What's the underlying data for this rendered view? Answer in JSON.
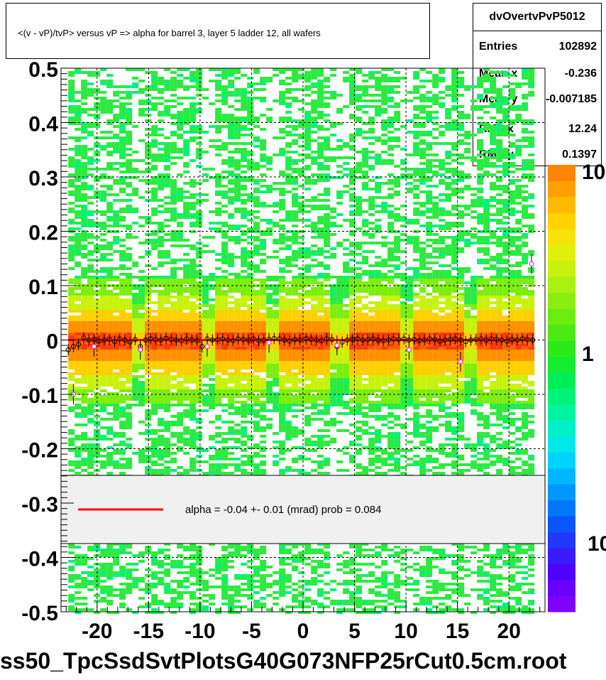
{
  "title": "<(v - vP)/tvP> versus   vP => alpha for barrel 3, layer 5 ladder 12, all wafers",
  "stats": {
    "name": "dvOvertvPvP5012",
    "rows": [
      {
        "key": "Entries",
        "value": "102892"
      },
      {
        "key": "Mean x",
        "value": "-0.236"
      },
      {
        "key": "Mean y",
        "value": "-0.007185"
      },
      {
        "key": "RMS x",
        "value": "12.24"
      },
      {
        "key": "RMS y",
        "value": "0.1397"
      }
    ]
  },
  "legend": {
    "line_color": "#ff0000",
    "text": "alpha =   -0.04 +-  0.01 (mrad) prob = 0.084"
  },
  "bottom_label": "ss50_TpcSsdSvtPlotsG40G073NFP25rCut0.5cm.root",
  "colors": {
    "points_profile": "#000000",
    "points_alt": "#ff00ff",
    "fit_line": "#ff0000",
    "grid": "#000000"
  },
  "chart_data": {
    "type": "heatmap",
    "title": "<(v - vP)/tvP> versus   vP => alpha for barrel 3, layer 5 ladder 12, all wafers",
    "xlim": [
      -23.5,
      23.5
    ],
    "ylim": [
      -0.5,
      0.5
    ],
    "x_ticks": [
      -20,
      -15,
      -10,
      -5,
      0,
      5,
      10,
      15,
      20
    ],
    "y_ticks": [
      -0.5,
      -0.4,
      -0.3,
      -0.2,
      -0.1,
      0,
      0.1,
      0.2,
      0.3,
      0.4,
      0.5
    ],
    "x_tick_labels": [
      "-20",
      "-15",
      "-10",
      "-5",
      "0",
      "5",
      "10",
      "15",
      "20"
    ],
    "y_tick_labels": [
      "-0.5",
      "-0.4",
      "-0.3",
      "-0.2",
      "-0.1",
      "0",
      "0.1",
      "0.2",
      "0.3",
      "0.4",
      "0.5"
    ],
    "grid": true,
    "colorbar": {
      "scale": "log",
      "tick_labels": [
        "10",
        "1",
        "10"
      ],
      "colors": [
        "#7f00ff",
        "#6a00ff",
        "#5000ff",
        "#3a1aff",
        "#2038ff",
        "#0a55ff",
        "#0077ff",
        "#0097ff",
        "#00b6ff",
        "#00d2ff",
        "#00e8e8",
        "#00f0c8",
        "#00f4a0",
        "#00f278",
        "#00ee55",
        "#14ec30",
        "#2cea1a",
        "#4cea14",
        "#6cec10",
        "#8cee10",
        "#aaf010",
        "#c8f20e",
        "#e2ee0c",
        "#f6e208",
        "#ffd200",
        "#ffba00",
        "#ffa000",
        "#ff8400"
      ]
    },
    "profile_points": {
      "x": [
        -22.8,
        -22.3,
        -21.8,
        -21.3,
        -20.8,
        -20.3,
        -19.8,
        -19.3,
        -18.8,
        -18.3,
        -17.8,
        -17.3,
        -16.8,
        -16.3,
        -15.8,
        -15.3,
        -14.8,
        -14.3,
        -13.8,
        -13.3,
        -12.8,
        -12.3,
        -11.8,
        -11.3,
        -10.8,
        -10.3,
        -9.8,
        -9.3,
        -8.8,
        -8.3,
        -7.8,
        -7.3,
        -6.8,
        -6.3,
        -5.8,
        -5.3,
        -4.8,
        -4.3,
        -3.8,
        -3.3,
        -2.8,
        -2.3,
        -1.8,
        -1.3,
        -0.8,
        -0.3,
        0.3,
        0.8,
        1.3,
        1.8,
        2.3,
        2.8,
        3.3,
        3.8,
        4.3,
        4.8,
        5.3,
        5.8,
        6.3,
        6.8,
        7.3,
        7.8,
        8.3,
        8.8,
        9.3,
        9.8,
        10.3,
        10.8,
        11.3,
        11.8,
        12.3,
        12.8,
        13.3,
        13.8,
        14.3,
        14.8,
        15.3,
        15.8,
        16.3,
        16.8,
        17.3,
        17.8,
        18.3,
        18.8,
        19.3,
        19.8,
        20.3,
        20.8,
        21.3,
        21.8,
        22.3
      ],
      "y": [
        -0.018,
        -0.012,
        -0.008,
        0.004,
        0.0,
        0.001,
        -0.002,
        0.0,
        0.001,
        -0.003,
        0.002,
        0.0,
        -0.004,
        0.001,
        -0.012,
        0.0,
        0.002,
        0.001,
        0.0,
        0.003,
        0.001,
        0.0,
        -0.001,
        0.002,
        0.0,
        -0.001,
        -0.012,
        0.002,
        0.0,
        0.001,
        0.002,
        0.0,
        -0.001,
        0.002,
        0.001,
        0.0,
        0.002,
        -0.001,
        0.0,
        0.001,
        0.003,
        0.002,
        0.0,
        -0.002,
        0.001,
        0.0,
        0.002,
        0.001,
        0.0,
        -0.001,
        0.002,
        0.001,
        -0.012,
        -0.004,
        0.0,
        0.001,
        0.002,
        0.0,
        0.001,
        0.002,
        0.0,
        -0.001,
        0.0,
        0.002,
        0.001,
        0.002,
        0.0,
        0.001,
        -0.001,
        0.0,
        0.002,
        0.001,
        -0.002,
        0.0,
        0.001,
        0.002,
        0.0,
        -0.003,
        0.0,
        0.001,
        0.002,
        0.0,
        0.002,
        0.001,
        0.0,
        -0.002,
        0.001,
        0.0,
        0.002,
        0.001,
        0.0
      ]
    },
    "alt_points": {
      "x": [
        -22.3,
        -20.3,
        -15.8,
        -9.3,
        -3.3,
        3.3,
        10.3,
        15.3,
        22.2
      ],
      "y": [
        -0.1,
        -0.012,
        -0.018,
        -0.012,
        -0.005,
        -0.01,
        -0.018,
        -0.04,
        0.14
      ]
    },
    "fit_line": {
      "x": [
        -22.8,
        22.3
      ],
      "y": [
        0.0,
        0.0
      ]
    }
  }
}
